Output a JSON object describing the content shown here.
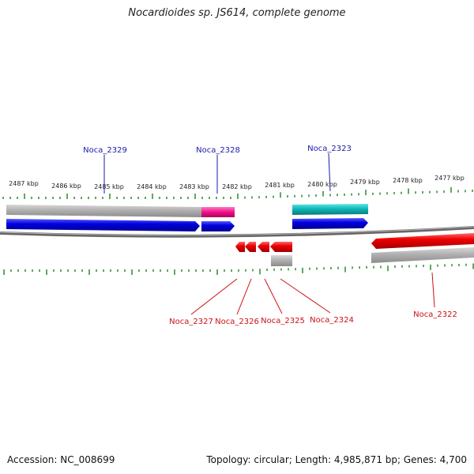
{
  "title": "Nocardioides sp. JS614, complete genome",
  "accession": "Accession: NC_008699",
  "summary": "Topology: circular; Length: 4,985,871 bp; Genes: 4,700",
  "colors": {
    "ruler_tick": "#2e8b2e",
    "forward_label": "#1a1aaa",
    "reverse_label": "#cc1111",
    "cds_forward": "#0000dd",
    "cds_reverse": "#ee0000",
    "gene_grey": "#aaaaaa",
    "gene_magenta": "#ee1188",
    "gene_cyan": "#10b8b8",
    "backbone": "#777777"
  },
  "ruler_labels": [
    "2487 kbp",
    "2486 kbp",
    "2485 kbp",
    "2484 kbp",
    "2483 kbp",
    "2482 kbp",
    "2481 kbp",
    "2480 kbp",
    "2479 kbp",
    "2478 kbp",
    "2477 kbp"
  ],
  "forward_genes": [
    "Noca_2329",
    "Noca_2328",
    "Noca_2323"
  ],
  "reverse_genes": [
    "Noca_2327",
    "Noca_2326",
    "Noca_2325",
    "Noca_2324",
    "Noca_2322"
  ]
}
